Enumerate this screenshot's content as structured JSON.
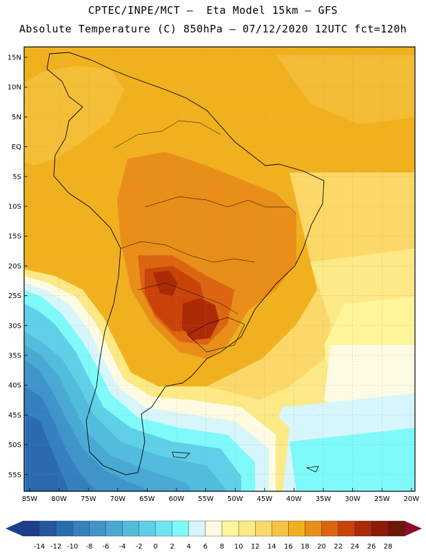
{
  "header": {
    "title_line1": "CPTEC/INPE/MCT –  Eta Model 15km – GFS",
    "title_line2": "Absolute Temperature (C) 850hPa – 07/12/2020 12UTC fct=120h"
  },
  "map": {
    "lat_labels": [
      "15N",
      "10N",
      "5N",
      "EQ",
      "5S",
      "10S",
      "15S",
      "20S",
      "25S",
      "30S",
      "35S",
      "40S",
      "45S",
      "50S",
      "55S"
    ],
    "lon_labels": [
      "85W",
      "80W",
      "75W",
      "70W",
      "65W",
      "60W",
      "55W",
      "50W",
      "45W",
      "40W",
      "35W",
      "30W",
      "25W",
      "20W"
    ]
  },
  "colorbar": {
    "labels": [
      "-14",
      "-12",
      "-10",
      "-8",
      "-6",
      "-4",
      "-2",
      "0",
      "2",
      "4",
      "6",
      "8",
      "10",
      "12",
      "14",
      "16",
      "18",
      "20",
      "22",
      "24",
      "26",
      "28"
    ],
    "colors": [
      "#1c3f8c",
      "#2256a0",
      "#2a6bb0",
      "#3580bf",
      "#3f94c9",
      "#4aa8d4",
      "#52bcdd",
      "#5fd0e7",
      "#6ee6f0",
      "#7ffafa",
      "#d6f6fb",
      "#fffbe3",
      "#fff59a",
      "#fde985",
      "#fbd868",
      "#f6c445",
      "#f1b11f",
      "#e98e18",
      "#dd6410",
      "#c94309",
      "#ad2a06",
      "#8c1c06",
      "#6c1608"
    ],
    "low_arrow_color": "#1c3f8c",
    "high_arrow_color": "#8a0a2c"
  }
}
